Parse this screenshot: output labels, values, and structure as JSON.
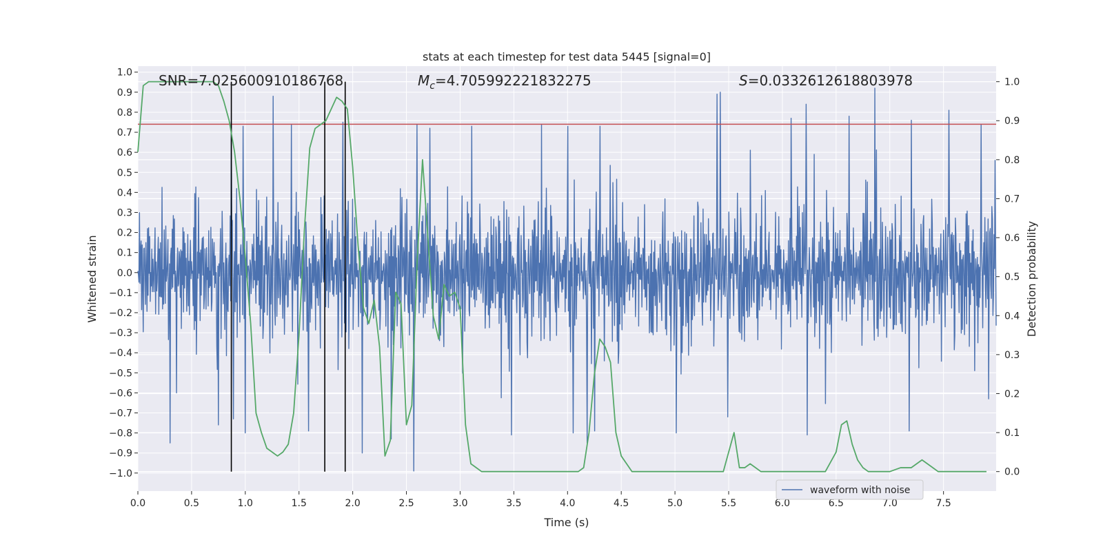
{
  "chart_data": {
    "type": "line",
    "title": "stats at each timestep for test data 5445 [signal=0]",
    "xlabel": "Time (s)",
    "ylabel_left": "Whitened strain",
    "ylabel_right": "Detection probability",
    "xlim": [
      0.0,
      7.99
    ],
    "ylim_left": [
      -1.09,
      1.03
    ],
    "ylim_right": [
      -0.05,
      1.04
    ],
    "xticks": [
      0.0,
      0.5,
      1.0,
      1.5,
      2.0,
      2.5,
      3.0,
      3.5,
      4.0,
      4.5,
      5.0,
      5.5,
      6.0,
      6.5,
      7.0,
      7.5
    ],
    "xtick_labels": [
      "0.0",
      "0.5",
      "1.0",
      "1.5",
      "2.0",
      "2.5",
      "3.0",
      "3.5",
      "4.0",
      "4.5",
      "5.0",
      "5.5",
      "6.0",
      "6.5",
      "7.0",
      "7.5"
    ],
    "yticks_left": [
      1.0,
      0.9,
      0.8,
      0.7,
      0.6,
      0.5,
      0.4,
      0.3,
      0.2,
      0.1,
      0.0,
      -0.1,
      -0.2,
      -0.3,
      -0.4,
      -0.5,
      -0.6,
      -0.7,
      -0.8,
      -0.9,
      -1.0
    ],
    "ytick_labels_left": [
      "1.0",
      "0.9",
      "0.8",
      "0.7",
      "0.6",
      "0.5",
      "0.4",
      "0.3",
      "0.2",
      "0.1",
      "0.0",
      "−0.1",
      "−0.2",
      "−0.3",
      "−0.4",
      "−0.5",
      "−0.6",
      "−0.7",
      "−0.8",
      "−0.9",
      "−1.0"
    ],
    "yticks_right": [
      1.0,
      0.9,
      0.8,
      0.7,
      0.6,
      0.5,
      0.4,
      0.3,
      0.2,
      0.1,
      0.0
    ],
    "ytick_labels_right": [
      "1.0",
      "0.9",
      "0.8",
      "0.7",
      "0.6",
      "0.5",
      "0.4",
      "0.3",
      "0.2",
      "0.1",
      "0.0"
    ],
    "annotations": {
      "snr": "SNR=7.025600910186768",
      "mc_symbol": "M",
      "mc_sub": "c",
      "mc_value": "=4.705992221832275",
      "s_symbol": "S",
      "s_value": "=0.0332612618803978"
    },
    "legend": {
      "label": "waveform with noise",
      "loc": "lower right"
    },
    "threshold": {
      "value": 0.74,
      "axis": "left",
      "color": "#c44e52"
    },
    "vertical_lines": [
      0.87,
      1.74,
      1.93
    ],
    "waveform": {
      "name": "waveform with noise",
      "color": "#4c72b0",
      "t_start": 0.0,
      "t_end": 7.99,
      "samples": 1600,
      "core_amplitude": 0.35,
      "max": 0.92,
      "min": -1.0,
      "peaks": [
        [
          0.87,
          0.75
        ],
        [
          0.98,
          0.73
        ],
        [
          1.26,
          0.88
        ],
        [
          1.43,
          0.74
        ],
        [
          1.91,
          0.75
        ],
        [
          2.6,
          0.74
        ],
        [
          2.72,
          0.72
        ],
        [
          3.11,
          0.73
        ],
        [
          3.76,
          0.74
        ],
        [
          4.0,
          0.73
        ],
        [
          4.3,
          0.73
        ],
        [
          5.39,
          0.89
        ],
        [
          5.42,
          0.9
        ],
        [
          6.08,
          0.77
        ],
        [
          6.22,
          0.84
        ],
        [
          6.62,
          0.78
        ],
        [
          6.86,
          0.92
        ],
        [
          7.2,
          0.76
        ],
        [
          7.55,
          0.81
        ],
        [
          7.85,
          0.74
        ],
        [
          7.98,
          0.56
        ]
      ],
      "troughs": [
        [
          0.3,
          -0.85
        ],
        [
          0.36,
          -0.6
        ],
        [
          0.75,
          -0.76
        ],
        [
          0.89,
          -0.73
        ],
        [
          1.0,
          -0.8
        ],
        [
          1.59,
          -0.79
        ],
        [
          2.09,
          -0.9
        ],
        [
          2.36,
          -0.83
        ],
        [
          2.57,
          -0.99
        ],
        [
          3.48,
          -0.81
        ],
        [
          4.05,
          -0.8
        ],
        [
          4.18,
          -0.85
        ],
        [
          4.25,
          -0.79
        ],
        [
          5.01,
          -0.8
        ],
        [
          5.49,
          -0.72
        ],
        [
          6.23,
          -0.81
        ],
        [
          7.18,
          -0.79
        ],
        [
          7.92,
          -0.63
        ]
      ]
    },
    "probability": {
      "name": "detection probability",
      "color": "#55a868",
      "x": [
        0.0,
        0.05,
        0.1,
        0.2,
        0.3,
        0.4,
        0.5,
        0.6,
        0.7,
        0.75,
        0.8,
        0.85,
        0.9,
        0.95,
        1.0,
        1.05,
        1.1,
        1.15,
        1.2,
        1.25,
        1.3,
        1.35,
        1.4,
        1.45,
        1.5,
        1.55,
        1.6,
        1.65,
        1.7,
        1.75,
        1.8,
        1.85,
        1.9,
        1.95,
        2.0,
        2.05,
        2.1,
        2.15,
        2.2,
        2.25,
        2.3,
        2.35,
        2.4,
        2.45,
        2.5,
        2.55,
        2.6,
        2.65,
        2.7,
        2.75,
        2.8,
        2.85,
        2.9,
        2.95,
        3.0,
        3.05,
        3.1,
        3.15,
        3.2,
        3.3,
        3.5,
        3.7,
        3.9,
        4.1,
        4.15,
        4.2,
        4.25,
        4.3,
        4.35,
        4.4,
        4.45,
        4.5,
        4.55,
        4.6,
        4.7,
        4.9,
        5.1,
        5.3,
        5.45,
        5.5,
        5.55,
        5.6,
        5.65,
        5.7,
        5.75,
        5.8,
        5.85,
        5.9,
        6.0,
        6.2,
        6.4,
        6.5,
        6.55,
        6.6,
        6.65,
        6.7,
        6.75,
        6.8,
        6.85,
        6.9,
        7.0,
        7.1,
        7.2,
        7.3,
        7.35,
        7.4,
        7.45,
        7.5,
        7.6,
        7.7,
        7.8,
        7.9
      ],
      "y": [
        0.82,
        0.99,
        1.0,
        1.0,
        1.0,
        1.0,
        1.0,
        1.0,
        1.0,
        0.99,
        0.95,
        0.9,
        0.82,
        0.7,
        0.55,
        0.38,
        0.15,
        0.1,
        0.06,
        0.05,
        0.04,
        0.05,
        0.07,
        0.15,
        0.35,
        0.62,
        0.83,
        0.88,
        0.89,
        0.9,
        0.93,
        0.96,
        0.95,
        0.93,
        0.78,
        0.58,
        0.42,
        0.38,
        0.44,
        0.32,
        0.04,
        0.08,
        0.46,
        0.43,
        0.12,
        0.17,
        0.54,
        0.8,
        0.6,
        0.4,
        0.34,
        0.48,
        0.45,
        0.46,
        0.42,
        0.12,
        0.02,
        0.01,
        0.0,
        0.0,
        0.0,
        0.0,
        0.0,
        0.0,
        0.01,
        0.1,
        0.25,
        0.34,
        0.32,
        0.28,
        0.1,
        0.04,
        0.02,
        0.0,
        0.0,
        0.0,
        0.0,
        0.0,
        0.0,
        0.05,
        0.1,
        0.01,
        0.01,
        0.02,
        0.01,
        0.0,
        0.0,
        0.0,
        0.0,
        0.0,
        0.0,
        0.05,
        0.12,
        0.13,
        0.07,
        0.03,
        0.01,
        0.0,
        0.0,
        0.0,
        0.0,
        0.01,
        0.01,
        0.03,
        0.02,
        0.01,
        0.0,
        0.0,
        0.0,
        0.0,
        0.0,
        0.0
      ]
    }
  }
}
